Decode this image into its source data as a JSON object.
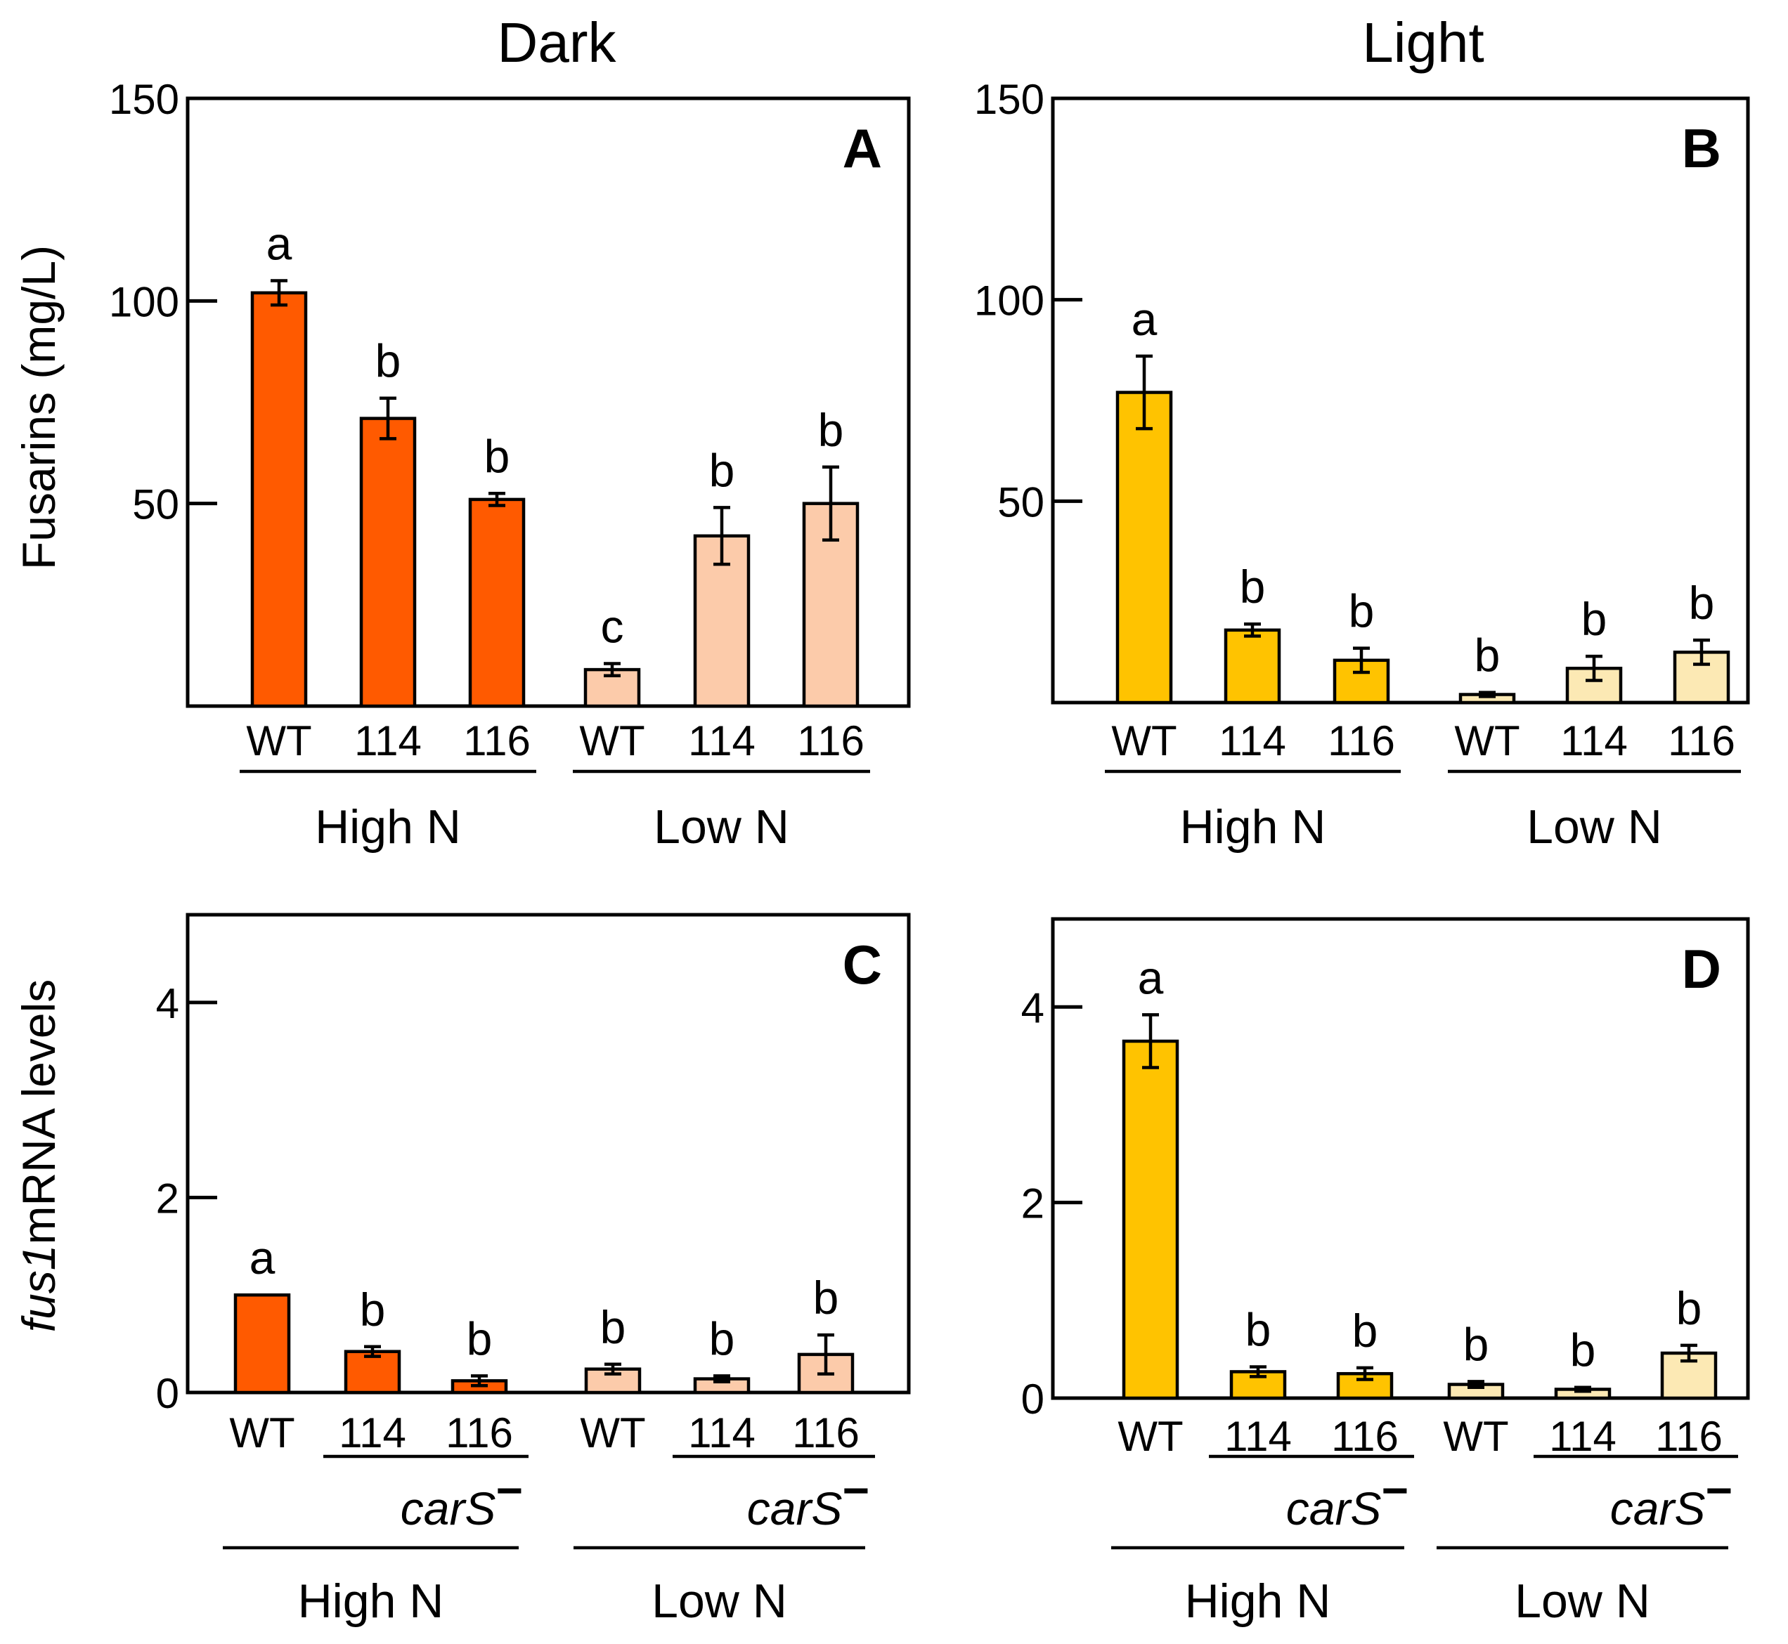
{
  "column_titles": [
    "Dark",
    "Light"
  ],
  "y_labels": {
    "top": "Fusarins (mg/L)",
    "bottom_italic": "fus1",
    "bottom_rest": "mRNA levels"
  },
  "mutant_label": "carS",
  "mutant_superscript": "−",
  "colors": {
    "dark_high": "#FF5A00",
    "dark_low": "#FCCBAA",
    "light_high": "#FFC300",
    "light_low": "#FCE9B4",
    "axis": "#000000"
  },
  "chart_data": [
    {
      "panel": "A",
      "type": "bar",
      "column": "Dark",
      "ylabel": "Fusarins (mg/L)",
      "ylim": [
        0,
        150
      ],
      "yticks": [
        50,
        100,
        150
      ],
      "categories": [
        "WT",
        "114",
        "116",
        "WT",
        "114",
        "116"
      ],
      "groups": [
        {
          "name": "High N",
          "range": [
            0,
            2
          ]
        },
        {
          "name": "Low N",
          "range": [
            3,
            5
          ]
        }
      ],
      "values": [
        102,
        71,
        51,
        9,
        42,
        50
      ],
      "errors": [
        3,
        5,
        1.5,
        1.5,
        7,
        9
      ],
      "significance": [
        "a",
        "b",
        "b",
        "c",
        "b",
        "b"
      ],
      "mutant_underline": false
    },
    {
      "panel": "B",
      "type": "bar",
      "column": "Light",
      "ylabel": "",
      "ylim": [
        0,
        150
      ],
      "yticks": [
        50,
        100,
        150
      ],
      "categories": [
        "WT",
        "114",
        "116",
        "WT",
        "114",
        "116"
      ],
      "groups": [
        {
          "name": "High N",
          "range": [
            0,
            2
          ]
        },
        {
          "name": "Low N",
          "range": [
            3,
            5
          ]
        }
      ],
      "values": [
        77,
        18,
        10.5,
        2,
        8.5,
        12.5
      ],
      "errors": [
        9,
        1.5,
        3,
        0.5,
        3,
        3
      ],
      "significance": [
        "a",
        "b",
        "b",
        "b",
        "b",
        "b"
      ],
      "mutant_underline": false
    },
    {
      "panel": "C",
      "type": "bar",
      "column": "Dark",
      "ylabel": "fus1mRNA levels",
      "ylim": [
        0,
        4.9
      ],
      "yticks": [
        0,
        2,
        4
      ],
      "categories": [
        "WT",
        "114",
        "116",
        "WT",
        "114",
        "116"
      ],
      "groups": [
        {
          "name": "High N",
          "range": [
            0,
            2
          ]
        },
        {
          "name": "Low N",
          "range": [
            3,
            5
          ]
        }
      ],
      "mutant_groups": [
        {
          "label": "carS−",
          "range": [
            1,
            2
          ]
        },
        {
          "label": "carS−",
          "range": [
            4,
            5
          ]
        }
      ],
      "values": [
        1.0,
        0.42,
        0.12,
        0.24,
        0.14,
        0.39
      ],
      "errors": [
        0,
        0.05,
        0.05,
        0.05,
        0.03,
        0.2
      ],
      "significance": [
        "a",
        "b",
        "b",
        "b",
        "b",
        "b"
      ],
      "mutant_underline": true
    },
    {
      "panel": "D",
      "type": "bar",
      "column": "Light",
      "ylabel": "",
      "ylim": [
        0,
        4.9
      ],
      "yticks": [
        0,
        2,
        4
      ],
      "categories": [
        "WT",
        "114",
        "116",
        "WT",
        "114",
        "116"
      ],
      "groups": [
        {
          "name": "High N",
          "range": [
            0,
            2
          ]
        },
        {
          "name": "Low N",
          "range": [
            3,
            5
          ]
        }
      ],
      "mutant_groups": [
        {
          "label": "carS−",
          "range": [
            1,
            2
          ]
        },
        {
          "label": "carS−",
          "range": [
            4,
            5
          ]
        }
      ],
      "values": [
        3.65,
        0.27,
        0.25,
        0.14,
        0.09,
        0.46
      ],
      "errors": [
        0.27,
        0.05,
        0.06,
        0.03,
        0.02,
        0.08
      ],
      "significance": [
        "a",
        "b",
        "b",
        "b",
        "b",
        "b"
      ],
      "mutant_underline": true
    }
  ]
}
